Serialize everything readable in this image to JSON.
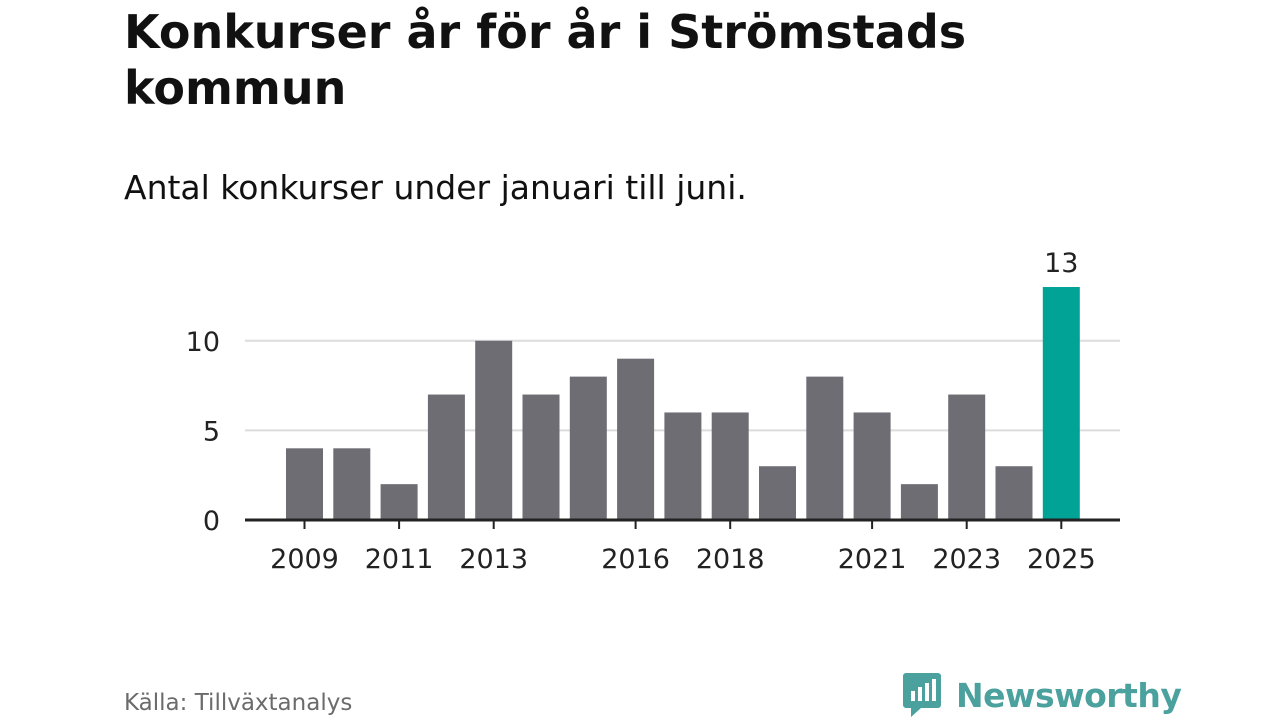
{
  "title": "Konkurser år för år i Strömstads kommun",
  "subtitle": "Antal konkurser under januari till juni.",
  "source": "Källa: Tillväxtanalys",
  "brand": "Newsworthy",
  "colors": {
    "bar": "#6e6d74",
    "highlight": "#00a396",
    "grid": "#dcdcdc",
    "axis": "#222222",
    "brand": "#4aa19e"
  },
  "chart_data": {
    "type": "bar",
    "title": "Konkurser år för år i Strömstads kommun",
    "subtitle": "Antal konkurser under januari till juni.",
    "xlabel": "",
    "ylabel": "",
    "categories": [
      "2009",
      "2010",
      "2011",
      "2012",
      "2013",
      "2014",
      "2015",
      "2016",
      "2017",
      "2018",
      "2019",
      "2020",
      "2021",
      "2022",
      "2023",
      "2024",
      "2025"
    ],
    "values": [
      4,
      4,
      2,
      7,
      10,
      7,
      8,
      9,
      6,
      6,
      3,
      8,
      6,
      2,
      7,
      3,
      13
    ],
    "x_tick_labels": [
      "2009",
      "2011",
      "2013",
      "2016",
      "2018",
      "2021",
      "2023",
      "2025"
    ],
    "y_ticks": [
      0,
      5,
      10
    ],
    "ylim": [
      0,
      13
    ],
    "highlight_category": "2025",
    "data_labels": [
      {
        "category": "2025",
        "text": "13"
      }
    ],
    "grid": true,
    "legend": "none"
  }
}
